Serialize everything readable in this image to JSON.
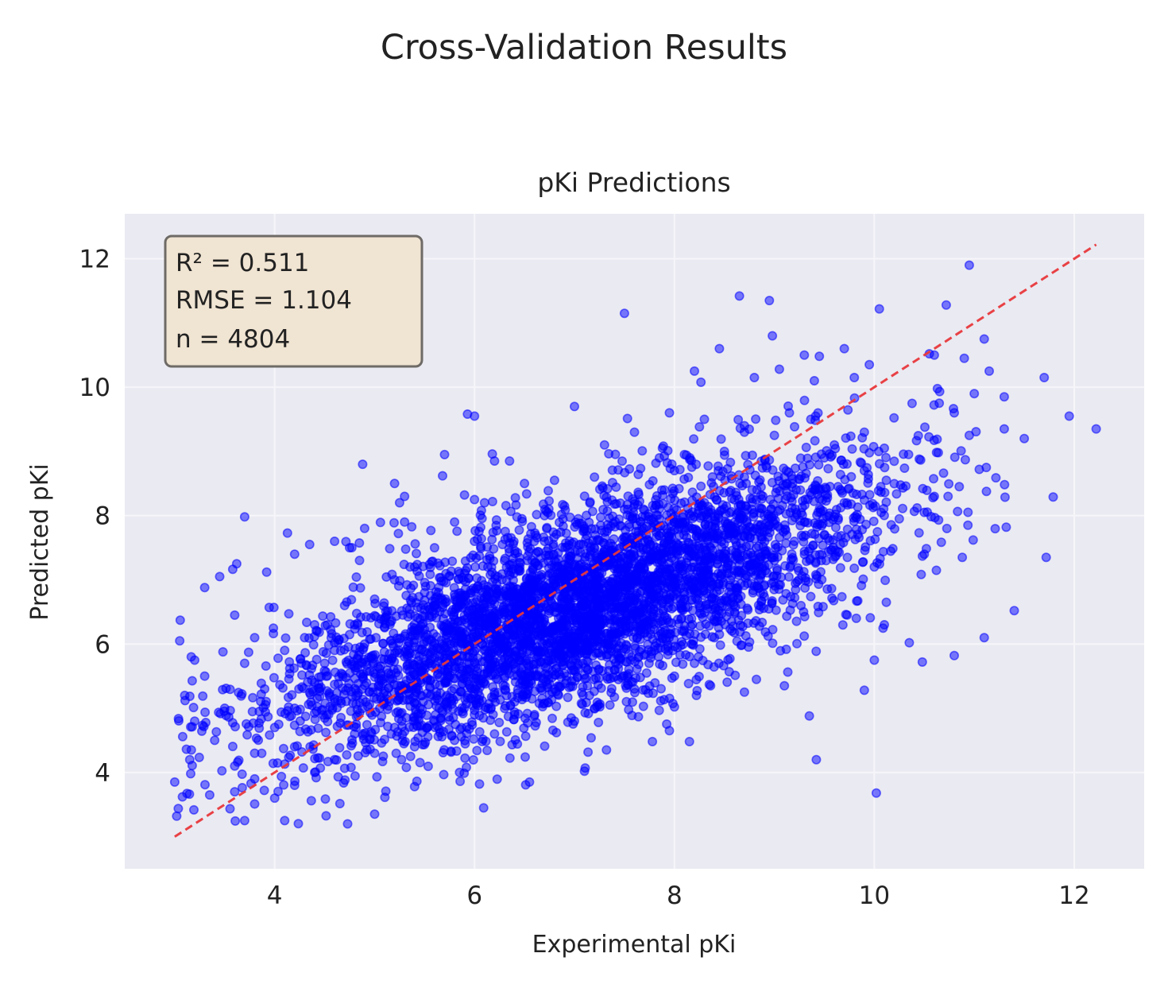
{
  "figure": {
    "suptitle": "Cross-Validation Results"
  },
  "chart_data": {
    "type": "scatter",
    "title": "pKi Predictions",
    "xlabel": "Experimental pKi",
    "ylabel": "Predicted pKi",
    "xlim": [
      2.5,
      12.7
    ],
    "ylim": [
      2.5,
      12.7
    ],
    "xticks": [
      4,
      6,
      8,
      10,
      12
    ],
    "yticks": [
      4,
      6,
      8,
      10,
      12
    ],
    "xtick_labels": [
      "4",
      "6",
      "8",
      "10",
      "12"
    ],
    "ytick_labels": [
      "4",
      "6",
      "8",
      "10",
      "12"
    ],
    "grid": true,
    "point_color": "#0000ff",
    "reference_line": {
      "from": [
        3.0,
        3.0
      ],
      "to": [
        12.22,
        12.22
      ],
      "color": "#e8383b",
      "style": "dashed"
    },
    "stats": {
      "r2_text": "R² = 0.511",
      "rmse_text": "RMSE = 1.104",
      "n_text": "n = 4804"
    },
    "n_points": 4804,
    "points": [
      [
        9.7,
        10.6
      ],
      [
        10.95,
        11.9
      ],
      [
        10.05,
        11.22
      ],
      [
        8.95,
        11.35
      ],
      [
        8.65,
        11.42
      ],
      [
        7.5,
        11.15
      ],
      [
        8.98,
        10.8
      ],
      [
        10.72,
        11.28
      ],
      [
        11.1,
        10.75
      ],
      [
        8.45,
        10.6
      ],
      [
        9.3,
        10.5
      ],
      [
        9.45,
        10.48
      ],
      [
        10.55,
        10.52
      ],
      [
        9.95,
        10.35
      ],
      [
        10.6,
        10.5
      ],
      [
        11.15,
        10.25
      ],
      [
        11.7,
        10.15
      ],
      [
        10.9,
        10.45
      ],
      [
        9.4,
        10.1
      ],
      [
        9.8,
        10.15
      ],
      [
        8.2,
        10.25
      ],
      [
        8.8,
        10.15
      ],
      [
        9.05,
        10.28
      ],
      [
        11.0,
        9.9
      ],
      [
        11.3,
        9.85
      ],
      [
        7.0,
        9.7
      ],
      [
        5.93,
        9.58
      ],
      [
        6.0,
        9.55
      ],
      [
        7.95,
        9.6
      ],
      [
        11.95,
        9.55
      ],
      [
        12.22,
        9.35
      ],
      [
        11.3,
        9.35
      ],
      [
        11.5,
        9.2
      ],
      [
        10.65,
        9.75
      ],
      [
        10.8,
        9.6
      ],
      [
        9.9,
        9.3
      ],
      [
        10.1,
        9.05
      ],
      [
        10.45,
        8.88
      ],
      [
        11.12,
        8.75
      ],
      [
        11.05,
        8.72
      ],
      [
        10.95,
        9.25
      ],
      [
        4.88,
        8.8
      ],
      [
        5.7,
        8.95
      ],
      [
        6.2,
        8.85
      ],
      [
        6.35,
        8.85
      ],
      [
        5.2,
        8.5
      ],
      [
        5.3,
        8.3
      ],
      [
        5.68,
        8.62
      ],
      [
        5.25,
        8.2
      ],
      [
        3.7,
        7.98
      ],
      [
        5.3,
        7.9
      ],
      [
        6.0,
        8.25
      ],
      [
        10.12,
        8.55
      ],
      [
        10.6,
        8.3
      ],
      [
        10.85,
        8.45
      ],
      [
        10.5,
        8.05
      ],
      [
        11.32,
        7.82
      ],
      [
        10.25,
        7.95
      ],
      [
        11.72,
        7.35
      ],
      [
        10.88,
        7.35
      ],
      [
        10.5,
        7.4
      ],
      [
        10.0,
        7.2
      ],
      [
        9.8,
        7.18
      ],
      [
        3.3,
        6.88
      ],
      [
        3.45,
        7.05
      ],
      [
        3.62,
        7.25
      ],
      [
        3.92,
        7.12
      ],
      [
        3.6,
        6.45
      ],
      [
        4.2,
        7.4
      ],
      [
        4.35,
        7.55
      ],
      [
        4.6,
        7.6
      ],
      [
        4.75,
        7.5
      ],
      [
        4.9,
        7.8
      ],
      [
        10.12,
        6.65
      ],
      [
        11.4,
        6.52
      ],
      [
        9.82,
        6.4
      ],
      [
        10.1,
        6.3
      ],
      [
        11.1,
        6.1
      ],
      [
        10.35,
        6.02
      ],
      [
        10.48,
        5.72
      ],
      [
        10.0,
        5.75
      ],
      [
        10.8,
        5.82
      ],
      [
        9.9,
        5.28
      ],
      [
        9.1,
        5.35
      ],
      [
        9.35,
        4.88
      ],
      [
        9.42,
        4.2
      ],
      [
        10.02,
        3.68
      ],
      [
        3.0,
        3.85
      ],
      [
        3.35,
        3.65
      ],
      [
        3.7,
        3.25
      ],
      [
        4.1,
        3.25
      ],
      [
        4.73,
        3.2
      ],
      [
        5.0,
        3.35
      ],
      [
        5.4,
        3.78
      ],
      [
        5.85,
        4.0
      ],
      [
        6.05,
        3.82
      ],
      [
        7.1,
        4.02
      ],
      [
        6.55,
        3.85
      ],
      [
        7.32,
        4.35
      ],
      [
        7.78,
        4.48
      ],
      [
        8.15,
        4.48
      ],
      [
        7.95,
        4.65
      ],
      [
        8.0,
        5.02
      ],
      [
        8.22,
        5.2
      ],
      [
        8.7,
        5.25
      ],
      [
        8.82,
        5.45
      ],
      [
        3.05,
        6.05
      ],
      [
        3.2,
        5.75
      ],
      [
        3.8,
        6.1
      ],
      [
        4.4,
        6.3
      ],
      [
        4.2,
        4.4
      ],
      [
        3.15,
        4.2
      ],
      [
        8.1,
        8.95
      ],
      [
        8.3,
        9.5
      ],
      [
        8.5,
        9.0
      ],
      [
        8.7,
        9.3
      ],
      [
        9.0,
        9.25
      ],
      [
        9.15,
        9.6
      ],
      [
        8.7,
        9.4
      ],
      [
        7.6,
        9.3
      ],
      [
        7.85,
        8.9
      ],
      [
        8.0,
        8.7
      ],
      [
        7.3,
        9.1
      ],
      [
        7.2,
        8.6
      ],
      [
        6.8,
        8.55
      ],
      [
        6.9,
        8.15
      ],
      [
        6.7,
        8.0
      ],
      [
        6.5,
        8.5
      ],
      [
        6.1,
        8.2
      ],
      [
        5.8,
        7.9
      ],
      [
        6.0,
        7.6
      ],
      [
        5.6,
        7.5
      ],
      [
        5.4,
        7.2
      ],
      [
        5.2,
        7.0
      ],
      [
        5.0,
        6.7
      ],
      [
        4.8,
        6.3
      ],
      [
        4.6,
        5.9
      ],
      [
        4.4,
        5.4
      ],
      [
        4.2,
        5.0
      ],
      [
        4.0,
        4.7
      ],
      [
        3.8,
        4.3
      ],
      [
        3.6,
        4.1
      ],
      [
        3.4,
        4.5
      ],
      [
        3.2,
        4.8
      ],
      [
        3.1,
        5.2
      ],
      [
        3.3,
        5.5
      ],
      [
        3.5,
        5.0
      ],
      [
        3.7,
        5.7
      ],
      [
        3.9,
        5.3
      ],
      [
        4.1,
        5.9
      ],
      [
        4.3,
        6.1
      ],
      [
        4.5,
        5.7
      ],
      [
        4.7,
        6.6
      ],
      [
        4.9,
        6.0
      ],
      [
        5.1,
        6.4
      ],
      [
        5.3,
        5.8
      ],
      [
        5.5,
        6.8
      ],
      [
        5.7,
        6.2
      ],
      [
        5.9,
        7.1
      ],
      [
        6.1,
        6.6
      ],
      [
        6.3,
        7.3
      ],
      [
        6.5,
        6.9
      ],
      [
        6.7,
        7.6
      ],
      [
        6.9,
        7.1
      ],
      [
        7.1,
        7.8
      ],
      [
        7.3,
        7.3
      ],
      [
        7.5,
        8.1
      ],
      [
        7.7,
        7.6
      ],
      [
        7.9,
        8.4
      ],
      [
        8.1,
        7.8
      ],
      [
        8.3,
        8.2
      ],
      [
        8.5,
        7.7
      ],
      [
        8.7,
        8.6
      ],
      [
        8.9,
        8.0
      ],
      [
        9.1,
        8.6
      ],
      [
        9.3,
        7.9
      ],
      [
        9.5,
        8.9
      ],
      [
        9.7,
        8.2
      ],
      [
        9.9,
        8.7
      ],
      [
        9.6,
        9.1
      ],
      [
        9.4,
        8.4
      ],
      [
        9.2,
        7.6
      ],
      [
        9.0,
        7.3
      ],
      [
        8.8,
        6.9
      ],
      [
        8.6,
        6.5
      ],
      [
        8.4,
        6.1
      ],
      [
        8.2,
        5.7
      ],
      [
        8.0,
        5.5
      ],
      [
        7.8,
        5.9
      ],
      [
        7.6,
        5.3
      ],
      [
        7.4,
        5.6
      ],
      [
        7.2,
        5.0
      ],
      [
        7.0,
        4.8
      ],
      [
        6.8,
        5.3
      ],
      [
        6.6,
        4.9
      ],
      [
        6.4,
        5.1
      ],
      [
        6.2,
        4.6
      ],
      [
        6.0,
        4.9
      ],
      [
        5.8,
        4.5
      ],
      [
        5.6,
        4.8
      ],
      [
        5.4,
        4.4
      ],
      [
        5.2,
        4.7
      ],
      [
        5.0,
        4.3
      ],
      [
        4.8,
        4.6
      ],
      [
        4.6,
        4.2
      ],
      [
        4.4,
        4.0
      ],
      [
        4.2,
        3.8
      ],
      [
        4.0,
        3.6
      ],
      [
        3.8,
        3.9
      ],
      [
        3.6,
        3.7
      ]
    ]
  }
}
